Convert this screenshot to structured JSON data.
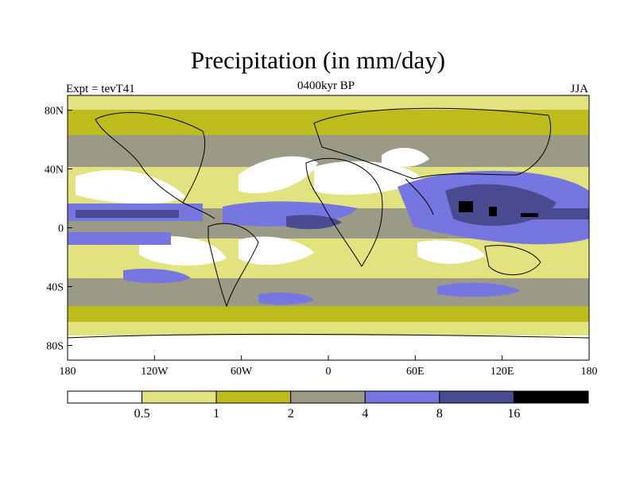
{
  "chart_data": {
    "type": "heatmap",
    "title": "Precipitation (in mm/day)",
    "left_subtitle": "Expt = tevT41",
    "center_subtitle": "0400kyr BP",
    "right_subtitle": "JJA",
    "x_ticks": [
      "180",
      "120W",
      "60W",
      "0",
      "60E",
      "120E",
      "180"
    ],
    "y_ticks": [
      "80N",
      "40N",
      "0",
      "40S",
      "80S"
    ],
    "xlim": [
      -180,
      180
    ],
    "ylim": [
      -90,
      90
    ],
    "levels": [
      0.5,
      1,
      2,
      4,
      8,
      16
    ],
    "level_labels": [
      "0.5",
      "1",
      "2",
      "4",
      "8",
      "16"
    ],
    "colors": [
      "#ffffff",
      "#e2e27f",
      "#bcbc1c",
      "#9a9a86",
      "#7676e0",
      "#4a4a90",
      "#000000"
    ],
    "coast_color": "#000000"
  }
}
